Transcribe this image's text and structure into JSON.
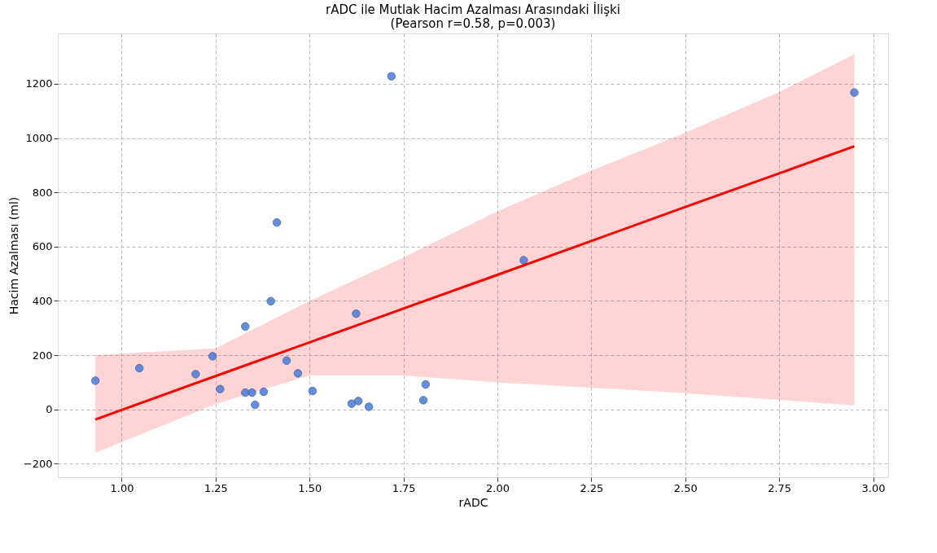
{
  "chart_data": {
    "type": "scatter",
    "title": "rADC ile Mutlak Hacim Azalması Arasındaki İlişki\n(Pearson r=0.58, p=0.003)",
    "xlabel": "rADC",
    "ylabel": "Hacim Azalması (ml)",
    "x": [
      0.93,
      1.047,
      1.197,
      1.242,
      1.262,
      1.329,
      1.329,
      1.347,
      1.355,
      1.378,
      1.397,
      1.413,
      1.439,
      1.469,
      1.508,
      1.612,
      1.63,
      1.624,
      1.658,
      1.803,
      1.809,
      1.718,
      2.07,
      2.95
    ],
    "series": [
      {
        "color": "#4a7bd6",
        "values": [
          106,
          152,
          130,
          196,
          75,
          306,
          62,
          62,
          17,
          65,
          399,
          689,
          180,
          133,
          68,
          21,
          31,
          353,
          10,
          34,
          92,
          1228,
          550,
          1168
        ]
      },
      {
        "type": "line",
        "color": "#ff0000",
        "marker": "none",
        "x": [
          0.93,
          1.25,
          1.5,
          1.75,
          2.0,
          2.25,
          2.5,
          2.75,
          2.95
        ],
        "values": [
          -37,
          123,
          247,
          372,
          496,
          621,
          746,
          870,
          970
        ],
        "lower": [
          -160,
          20,
          125,
          125,
          100,
          80,
          60,
          35,
          15
        ],
        "upper": [
          200,
          225,
          400,
          560,
          730,
          880,
          1020,
          1170,
          1310
        ]
      }
    ],
    "xlim": [
      0.83,
      3.04
    ],
    "ylim": [
      -250,
      1386
    ],
    "xticks": [
      {
        "value": 1,
        "label": "1.00"
      },
      {
        "value": 1.25,
        "label": "1.25"
      },
      {
        "value": 1.5,
        "label": "1.50"
      },
      {
        "value": 1.75,
        "label": "1.75"
      },
      {
        "value": 2,
        "label": "2.00"
      },
      {
        "value": 2.25,
        "label": "2.25"
      },
      {
        "value": 2.5,
        "label": "2.50"
      },
      {
        "value": 2.75,
        "label": "2.75"
      },
      {
        "value": 3,
        "label": "3.00"
      }
    ],
    "yticks": [
      -200,
      0,
      200,
      400,
      600,
      800,
      1000,
      1200
    ],
    "grid": true,
    "marker": "circle",
    "line_style": "solid"
  }
}
